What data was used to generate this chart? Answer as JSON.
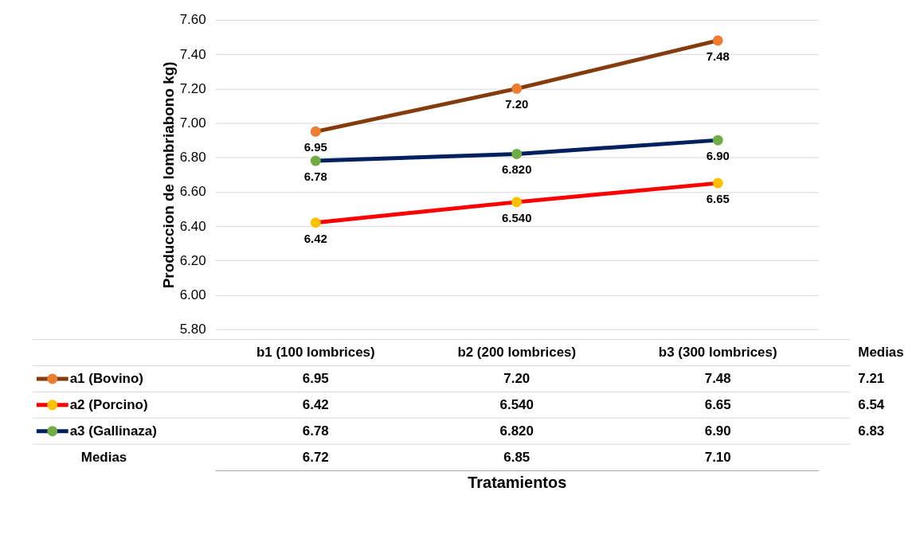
{
  "chart_data": {
    "type": "line",
    "ylabel": "Produccion  de lombriabono  kg)",
    "categories": [
      "b1 (100 lombrices)",
      "b2 (200 lombrices)",
      "b3 (300 lombrices)"
    ],
    "series": [
      {
        "name": "a1 (Bovino)",
        "color": "#843c0c",
        "colors": [
          "#ed7d31",
          "#ed7d31",
          "#ed7d31"
        ],
        "values": [
          6.95,
          7.2,
          7.48
        ],
        "value_labels": [
          "6.95",
          "7.20",
          "7.48"
        ]
      },
      {
        "name": "a2 (Porcino)",
        "color": "#ff0000",
        "colors": [
          "#ffc000",
          "#ffc000",
          "#ffc000"
        ],
        "values": [
          6.42,
          6.54,
          6.65
        ],
        "value_labels": [
          "6.42",
          "6.540",
          "6.65"
        ]
      },
      {
        "name": "a3 (Gallinaza)",
        "color": "#002060",
        "colors": [
          "#70ad47",
          "#70ad47",
          "#70ad47"
        ],
        "values": [
          6.78,
          6.82,
          6.9
        ],
        "value_labels": [
          "6.78",
          "6.820",
          "6.90"
        ]
      }
    ],
    "ylim": [
      5.8,
      7.6
    ],
    "yticks": [
      {
        "value": 5.8,
        "label": "5.80"
      },
      {
        "value": 6.0,
        "label": "6.00"
      },
      {
        "value": 6.2,
        "label": "6.20"
      },
      {
        "value": 6.4,
        "label": "6.40"
      },
      {
        "value": 6.6,
        "label": "6.60"
      },
      {
        "value": 6.8,
        "label": "6.80"
      },
      {
        "value": 7.0,
        "label": "7.00"
      },
      {
        "value": 7.2,
        "label": "7.20"
      },
      {
        "value": 7.4,
        "label": "7.40"
      },
      {
        "value": 7.6,
        "label": "7.60"
      }
    ],
    "grid": "y",
    "marker": "circle",
    "line_style": "solid",
    "legend": "bottom",
    "annotations": [
      "Medias",
      "6.72",
      "6.85",
      "7.10",
      "Medias",
      "7.21",
      "6.54",
      "6.83",
      "Tratamientos"
    ]
  }
}
